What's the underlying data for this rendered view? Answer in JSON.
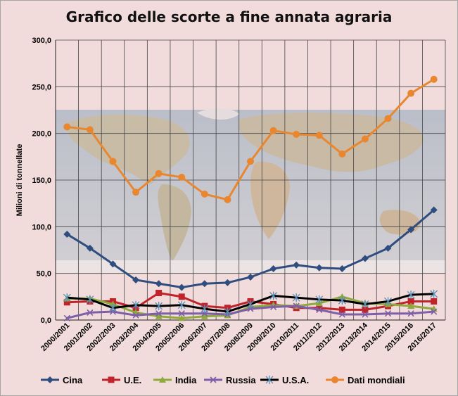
{
  "chart_data": {
    "type": "line",
    "title": "Grafico delle scorte a fine annata agraria",
    "ylabel": "Milioni di tonnellate",
    "xlabel": "",
    "ylim": [
      0,
      300
    ],
    "yticks": [
      "0,0",
      "50,0",
      "100,0",
      "150,0",
      "200,0",
      "250,0",
      "300,0"
    ],
    "grid": true,
    "legend_position": "bottom",
    "categories": [
      "2000/2001",
      "2001/2002",
      "2002/2003",
      "2003/2004",
      "2004/2005",
      "2005/2006",
      "2006/2007",
      "2007/2008",
      "2008/2009",
      "2009/2010",
      "2010/2011",
      "2011/2012",
      "2012/2013",
      "2013/2014",
      "2014/2015",
      "2015/2016",
      "2016/2017"
    ],
    "series": [
      {
        "name": "Cina",
        "color": "#2f4d7e",
        "marker": "diamond",
        "values": [
          92,
          77,
          60,
          43,
          39,
          35,
          39,
          40,
          46,
          55,
          59,
          56,
          55,
          66,
          77,
          97,
          118
        ]
      },
      {
        "name": "U.E.",
        "color": "#c0242a",
        "marker": "square",
        "values": [
          19,
          20,
          20,
          13,
          29,
          25,
          15,
          13,
          20,
          17,
          13,
          13,
          11,
          11,
          15,
          20,
          20
        ]
      },
      {
        "name": "India",
        "color": "#8faa3c",
        "marker": "triangle",
        "values": [
          23,
          23,
          17,
          8,
          4,
          2,
          4,
          5,
          14,
          16,
          15,
          18,
          25,
          18,
          17,
          15,
          12
        ]
      },
      {
        "name": "Russia",
        "color": "#7d5ea7",
        "marker": "x",
        "values": [
          2,
          8,
          9,
          5,
          7,
          7,
          7,
          6,
          12,
          14,
          15,
          11,
          6,
          6,
          7,
          7,
          9
        ]
      },
      {
        "name": "U.S.A.",
        "color": "#000000",
        "marker": "asterisk",
        "values": [
          24,
          22,
          13,
          16,
          15,
          16,
          12,
          9,
          17,
          26,
          24,
          22,
          21,
          17,
          20,
          27,
          28
        ]
      },
      {
        "name": "Dati mondiali",
        "color": "#e8872f",
        "marker": "circle",
        "values": [
          207,
          204,
          170,
          137,
          157,
          153,
          135,
          129,
          170,
          203,
          199,
          198,
          178,
          194,
          216,
          243,
          258
        ]
      }
    ]
  }
}
